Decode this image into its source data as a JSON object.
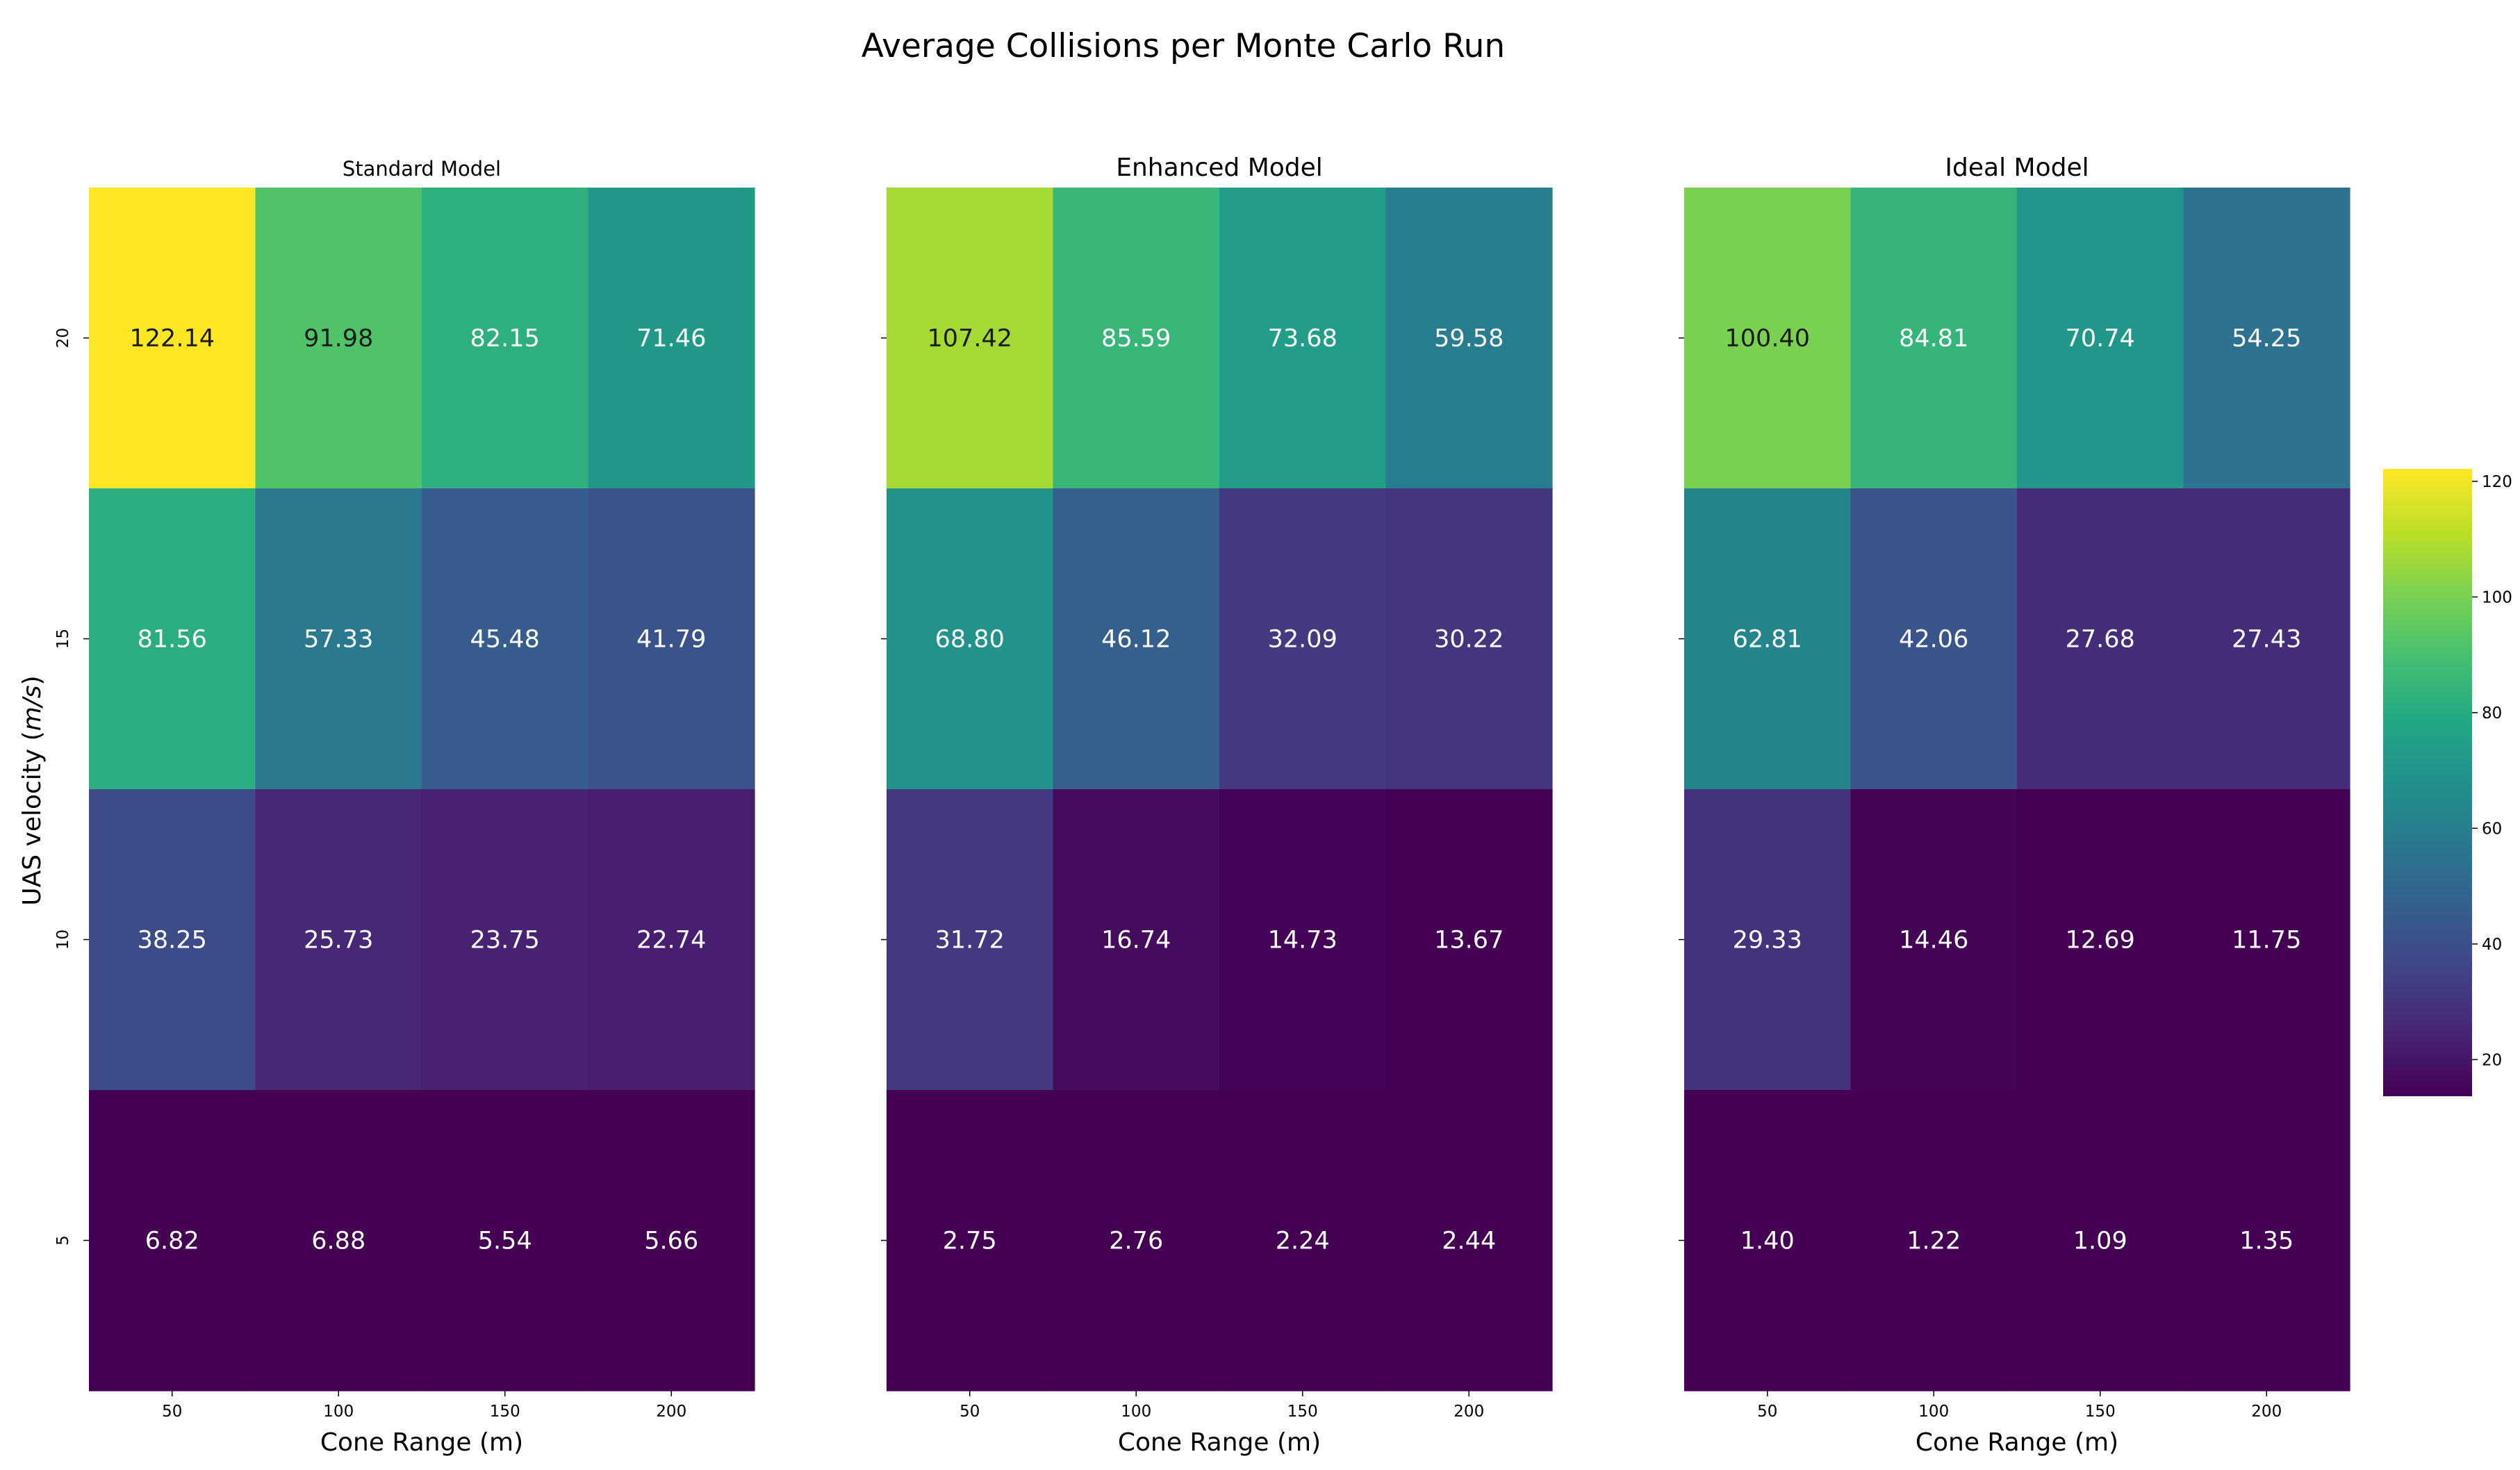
{
  "chart_data": {
    "type": "heatmap",
    "title": "Average Collisions per Monte Carlo Run",
    "colormap": "viridis",
    "color_range": [
      13.67,
      122.14
    ],
    "colorbar_ticks": [
      "20",
      "40",
      "60",
      "80",
      "100",
      "120"
    ],
    "colorbar_tick_values": [
      20,
      40,
      60,
      80,
      100,
      120
    ],
    "ylabel": "UAS velocity (m/s)",
    "y_categories": [
      "20",
      "15",
      "10",
      "5"
    ],
    "x_categories": [
      "50",
      "100",
      "150",
      "200"
    ],
    "panels": [
      {
        "title": "Standard Model",
        "xlabel": "Cone Range (m)",
        "values": [
          [
            122.14,
            91.98,
            82.15,
            71.46
          ],
          [
            81.56,
            57.33,
            45.48,
            41.79
          ],
          [
            38.25,
            25.73,
            23.75,
            22.74
          ],
          [
            6.82,
            6.88,
            5.54,
            5.66
          ]
        ],
        "labels": [
          [
            "122.14",
            "91.98",
            "82.15",
            "71.46"
          ],
          [
            "81.56",
            "57.33",
            "45.48",
            "41.79"
          ],
          [
            "38.25",
            "25.73",
            "23.75",
            "22.74"
          ],
          [
            "6.82",
            "6.88",
            "5.54",
            "5.66"
          ]
        ]
      },
      {
        "title": "Enhanced Model",
        "xlabel": "Cone Range (m)",
        "values": [
          [
            107.42,
            85.59,
            73.68,
            59.58
          ],
          [
            68.8,
            46.12,
            32.09,
            30.22
          ],
          [
            31.72,
            16.74,
            14.73,
            13.67
          ],
          [
            2.75,
            2.76,
            2.24,
            2.44
          ]
        ],
        "labels": [
          [
            "107.42",
            "85.59",
            "73.68",
            "59.58"
          ],
          [
            "68.80",
            "46.12",
            "32.09",
            "30.22"
          ],
          [
            "31.72",
            "16.74",
            "14.73",
            "13.67"
          ],
          [
            "2.75",
            "2.76",
            "2.24",
            "2.44"
          ]
        ]
      },
      {
        "title": "Ideal Model",
        "xlabel": "Cone Range (m)",
        "values": [
          [
            100.4,
            84.81,
            70.74,
            54.25
          ],
          [
            62.81,
            42.06,
            27.68,
            27.43
          ],
          [
            29.33,
            14.46,
            12.69,
            11.75
          ],
          [
            1.4,
            1.22,
            1.09,
            1.35
          ]
        ],
        "labels": [
          [
            "100.40",
            "84.81",
            "70.74",
            "54.25"
          ],
          [
            "62.81",
            "42.06",
            "27.68",
            "27.43"
          ],
          [
            "29.33",
            "14.46",
            "12.69",
            "11.75"
          ],
          [
            "1.40",
            "1.22",
            "1.09",
            "1.35"
          ]
        ]
      }
    ]
  }
}
